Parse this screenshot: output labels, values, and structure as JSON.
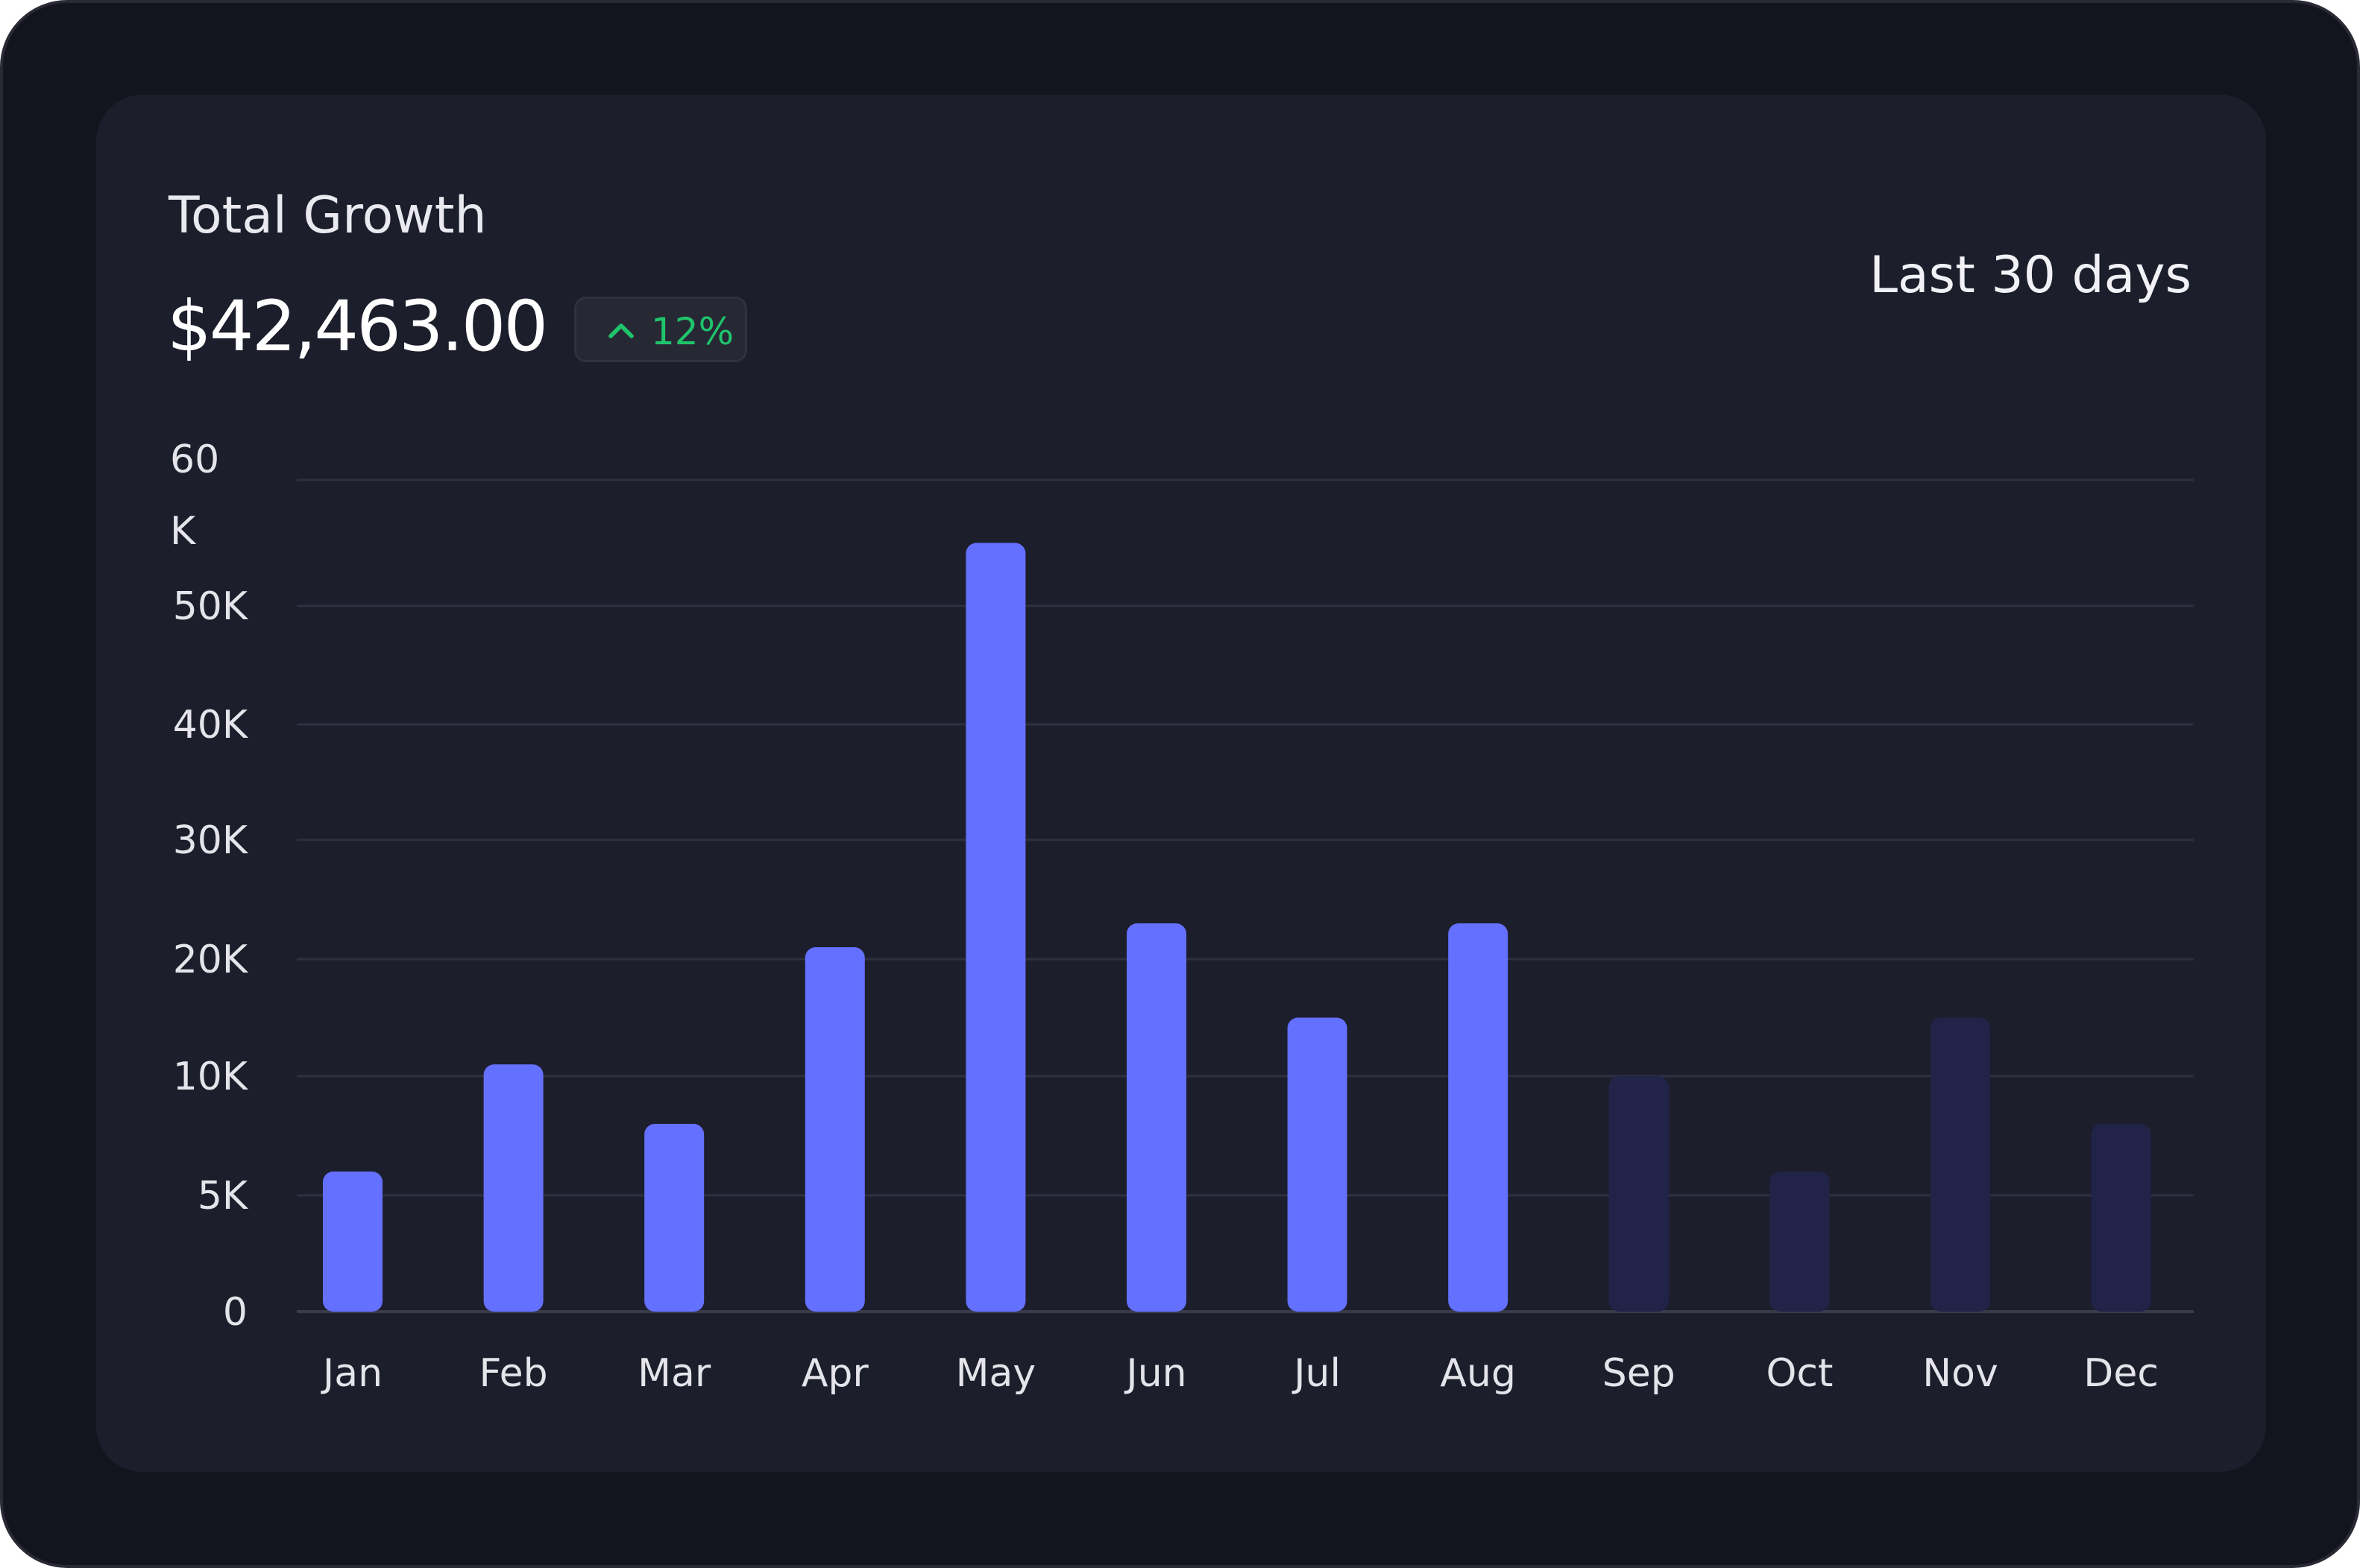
{
  "header": {
    "title": "Total Growth",
    "total": "$42,463.00",
    "change": "12%",
    "range": "Last 30 days"
  },
  "colors": {
    "bar_active": "#6470ff",
    "bar_inactive": "#212348",
    "change_positive": "#1fc46b"
  },
  "icons": {
    "change": "chevron-up-icon"
  },
  "chart_data": {
    "type": "bar",
    "categories": [
      "Jan",
      "Feb",
      "Mar",
      "Apr",
      "May",
      "Jun",
      "Jul",
      "Aug",
      "Sep",
      "Oct",
      "Nov",
      "Dec"
    ],
    "values": [
      6000,
      11000,
      8000,
      21000,
      55000,
      23000,
      15000,
      23000,
      10000,
      6000,
      15000,
      8000
    ],
    "highlighted": [
      true,
      true,
      true,
      true,
      true,
      true,
      true,
      true,
      false,
      false,
      false,
      false
    ],
    "y_ticks": [
      0,
      5000,
      10000,
      20000,
      30000,
      40000,
      50000,
      60000
    ],
    "y_tick_labels": [
      "0",
      "5K",
      "10K",
      "20K",
      "30K",
      "40K",
      "50K",
      "60 K"
    ],
    "ylim": [
      0,
      60000
    ],
    "grid": true,
    "legend": "none"
  }
}
